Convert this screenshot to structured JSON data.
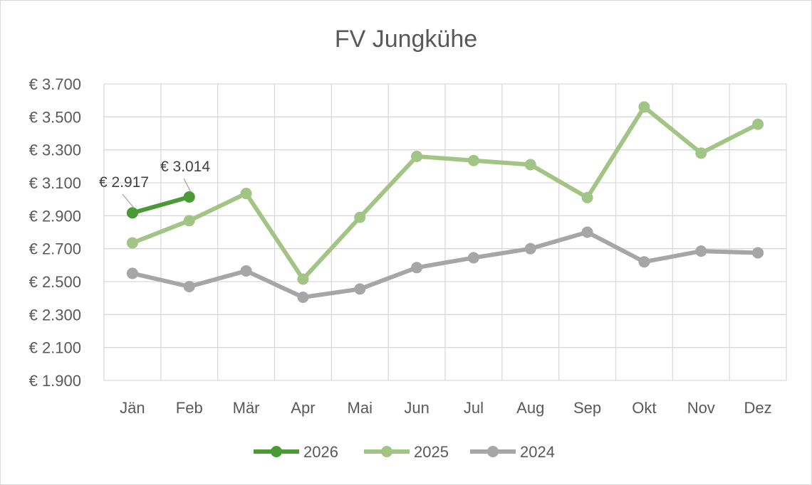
{
  "chart_data": {
    "type": "line",
    "title": "FV Jungkühe",
    "xlabel": "",
    "ylabel": "",
    "categories": [
      "Jän",
      "Feb",
      "Mär",
      "Apr",
      "Mai",
      "Jun",
      "Jul",
      "Aug",
      "Sep",
      "Okt",
      "Nov",
      "Dez"
    ],
    "ylim": [
      1900,
      3700
    ],
    "yticks": [
      1900,
      2100,
      2300,
      2500,
      2700,
      2900,
      3100,
      3300,
      3500,
      3700
    ],
    "ytick_labels": [
      "€ 1.900",
      "€ 2.100",
      "€ 2.300",
      "€ 2.500",
      "€ 2.700",
      "€ 2.900",
      "€ 3.100",
      "€ 3.300",
      "€ 3.500",
      "€ 3.700"
    ],
    "grid": true,
    "legend_position": "bottom",
    "series": [
      {
        "name": "2026",
        "color": "#4a9a36",
        "values": [
          2917,
          3014,
          null,
          null,
          null,
          null,
          null,
          null,
          null,
          null,
          null,
          null
        ],
        "data_labels": [
          "€ 2.917",
          "€ 3.014"
        ]
      },
      {
        "name": "2025",
        "color": "#a2c586",
        "values": [
          2735,
          2870,
          3035,
          2515,
          2890,
          3260,
          3235,
          3210,
          3010,
          3560,
          3280,
          3455
        ]
      },
      {
        "name": "2024",
        "color": "#a6a6a6",
        "values": [
          2550,
          2470,
          2565,
          2405,
          2455,
          2585,
          2645,
          2700,
          2800,
          2620,
          2685,
          2675
        ]
      }
    ]
  }
}
